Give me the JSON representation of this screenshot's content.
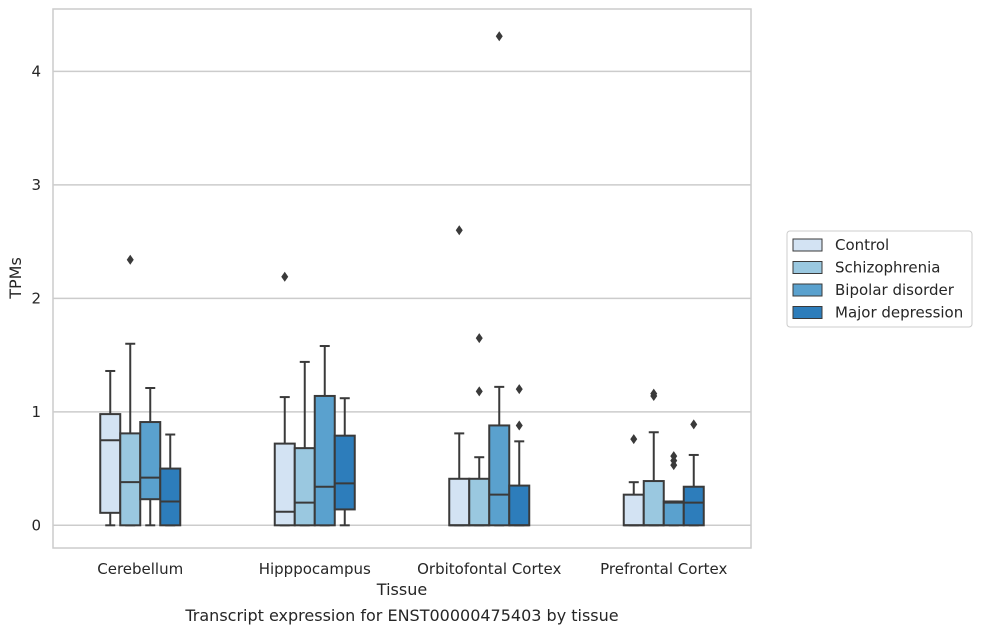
{
  "chart_data": {
    "type": "boxplot",
    "caption": "Transcript expression for ENST00000475403 by tissue",
    "xlabel": "Tissue",
    "ylabel": "TPMs",
    "ylim": [
      -0.2,
      4.55
    ],
    "yticks": [
      0,
      1,
      2,
      3,
      4
    ],
    "grid": true,
    "legend_position": "right",
    "categories": [
      "Cerebellum",
      "Hipppocampus",
      "Orbitofontal Cortex",
      "Prefrontal Cortex"
    ],
    "series": [
      {
        "name": "Control",
        "color": "#d3e3f3",
        "boxes": [
          {
            "whislo": 0.0,
            "q1": 0.11,
            "med": 0.75,
            "q3": 0.98,
            "whishi": 1.36,
            "fliers": []
          },
          {
            "whislo": 0.0,
            "q1": 0.0,
            "med": 0.12,
            "q3": 0.72,
            "whishi": 1.13,
            "fliers": [
              2.19
            ]
          },
          {
            "whislo": 0.0,
            "q1": 0.0,
            "med": 0.0,
            "q3": 0.41,
            "whishi": 0.81,
            "fliers": [
              2.6
            ]
          },
          {
            "whislo": 0.0,
            "q1": 0.0,
            "med": 0.0,
            "q3": 0.27,
            "whishi": 0.38,
            "fliers": [
              0.76
            ]
          }
        ]
      },
      {
        "name": "Schizophrenia",
        "color": "#9ac8e0",
        "boxes": [
          {
            "whislo": 0.0,
            "q1": 0.0,
            "med": 0.38,
            "q3": 0.81,
            "whishi": 1.6,
            "fliers": [
              2.34
            ]
          },
          {
            "whislo": 0.0,
            "q1": 0.0,
            "med": 0.2,
            "q3": 0.68,
            "whishi": 1.44,
            "fliers": []
          },
          {
            "whislo": 0.0,
            "q1": 0.0,
            "med": 0.0,
            "q3": 0.41,
            "whishi": 0.6,
            "fliers": [
              1.18,
              1.65
            ]
          },
          {
            "whislo": 0.0,
            "q1": 0.0,
            "med": 0.0,
            "q3": 0.39,
            "whishi": 0.82,
            "fliers": [
              1.14,
              1.16
            ]
          }
        ]
      },
      {
        "name": "Bipolar disorder",
        "color": "#5aa1ce",
        "boxes": [
          {
            "whislo": 0.0,
            "q1": 0.23,
            "med": 0.42,
            "q3": 0.91,
            "whishi": 1.21,
            "fliers": []
          },
          {
            "whislo": 0.0,
            "q1": 0.0,
            "med": 0.34,
            "q3": 1.14,
            "whishi": 1.58,
            "fliers": []
          },
          {
            "whislo": 0.0,
            "q1": 0.0,
            "med": 0.27,
            "q3": 0.88,
            "whishi": 1.22,
            "fliers": [
              4.31
            ]
          },
          {
            "whislo": 0.0,
            "q1": 0.0,
            "med": 0.2,
            "q3": 0.21,
            "whishi": 0.21,
            "fliers": [
              0.53,
              0.57,
              0.61
            ]
          }
        ]
      },
      {
        "name": "Major depression",
        "color": "#2d7dbb",
        "boxes": [
          {
            "whislo": 0.0,
            "q1": 0.0,
            "med": 0.21,
            "q3": 0.5,
            "whishi": 0.8,
            "fliers": []
          },
          {
            "whislo": 0.0,
            "q1": 0.14,
            "med": 0.37,
            "q3": 0.79,
            "whishi": 1.12,
            "fliers": []
          },
          {
            "whislo": 0.0,
            "q1": 0.0,
            "med": 0.0,
            "q3": 0.35,
            "whishi": 0.74,
            "fliers": [
              0.88,
              1.2
            ]
          },
          {
            "whislo": 0.0,
            "q1": 0.0,
            "med": 0.2,
            "q3": 0.34,
            "whishi": 0.62,
            "fliers": [
              0.89
            ]
          }
        ]
      }
    ]
  }
}
